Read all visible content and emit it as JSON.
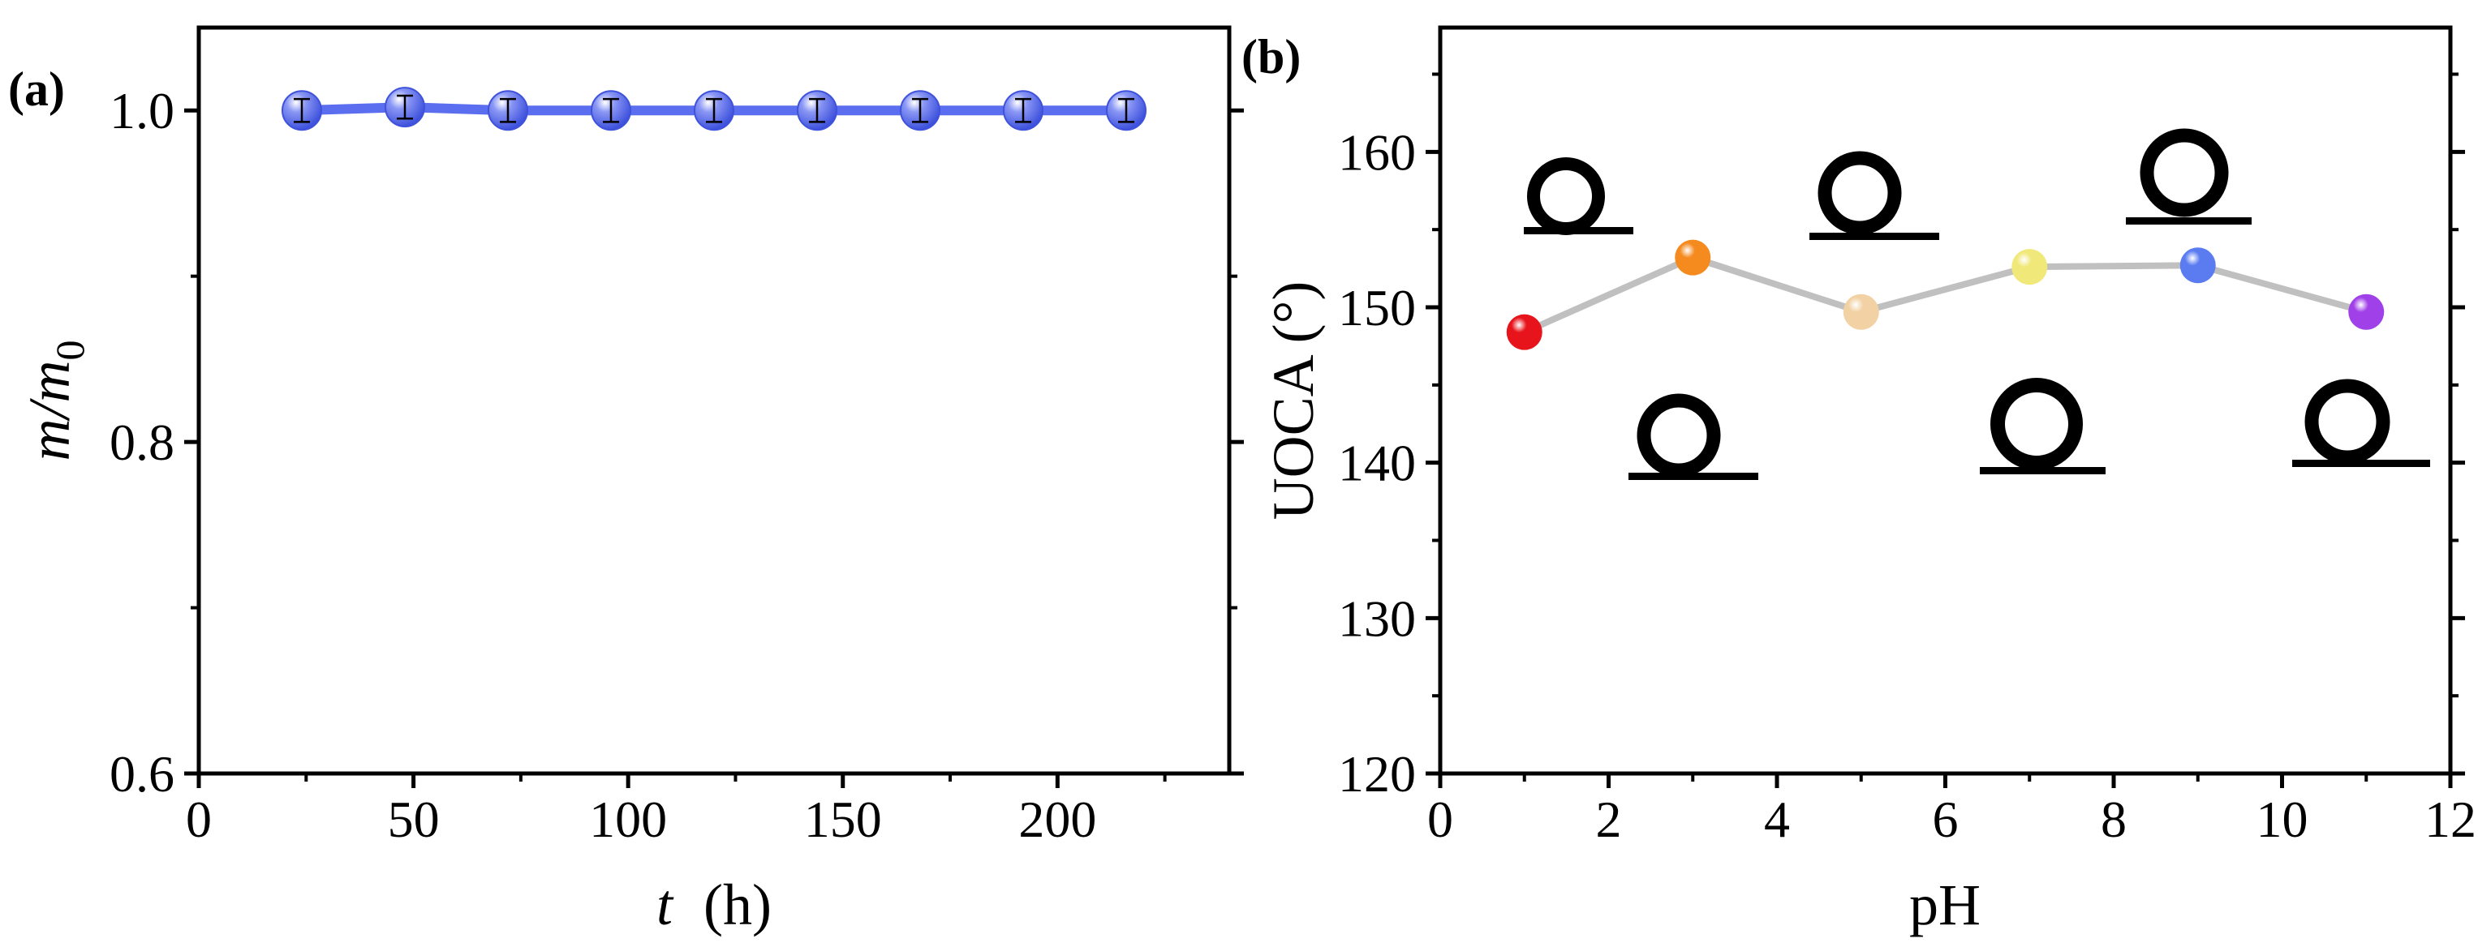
{
  "chart_data": [
    {
      "panel_label": "(a)",
      "type": "line",
      "xlabel_var": "t",
      "xlabel_unit": "(h)",
      "ylabel_num": "m",
      "ylabel_den": "m",
      "ylabel_den_sub": "0",
      "xlim": [
        0,
        240
      ],
      "ylim": [
        0.6,
        1.05
      ],
      "xticks": [
        0,
        50,
        100,
        150,
        200
      ],
      "yticks": [
        0.6,
        0.8,
        1.0
      ],
      "xtick_labels": [
        "0",
        "50",
        "100",
        "150",
        "200"
      ],
      "ytick_labels": [
        "0.6",
        "0.8",
        "1.0"
      ],
      "x": [
        24,
        48,
        72,
        96,
        120,
        144,
        168,
        192,
        216
      ],
      "y": [
        1.0,
        1.002,
        1.0,
        1.0,
        1.0,
        1.0,
        1.0,
        1.0,
        1.0
      ],
      "error": [
        0.003,
        0.003,
        0.003,
        0.003,
        0.003,
        0.003,
        0.003,
        0.003,
        0.003
      ],
      "line_color": "#5b6ef0",
      "marker_color": "#6677f2",
      "grid": false
    },
    {
      "panel_label": "(b)",
      "type": "line",
      "xlabel": "pH",
      "ylabel": "UOCA (°)",
      "xlim": [
        0,
        12
      ],
      "ylim": [
        120,
        168
      ],
      "xticks": [
        0,
        2,
        4,
        6,
        8,
        10,
        12
      ],
      "yticks": [
        120,
        130,
        140,
        150,
        160
      ],
      "xtick_labels": [
        "0",
        "2",
        "4",
        "6",
        "8",
        "10",
        "12"
      ],
      "ytick_labels": [
        "120",
        "130",
        "140",
        "150",
        "160"
      ],
      "x": [
        1,
        3,
        5,
        7,
        9,
        11
      ],
      "y": [
        148.4,
        153.2,
        149.7,
        152.6,
        152.7,
        149.7
      ],
      "point_colors": [
        "#e8141c",
        "#f58a1f",
        "#f2d2a4",
        "#f0e878",
        "#5a7cf0",
        "#a040e8"
      ],
      "line_color": "#c0c0c0",
      "insets": [
        "droplet-1",
        "droplet-2",
        "droplet-3",
        "droplet-4",
        "droplet-5",
        "droplet-6"
      ],
      "grid": false
    }
  ]
}
